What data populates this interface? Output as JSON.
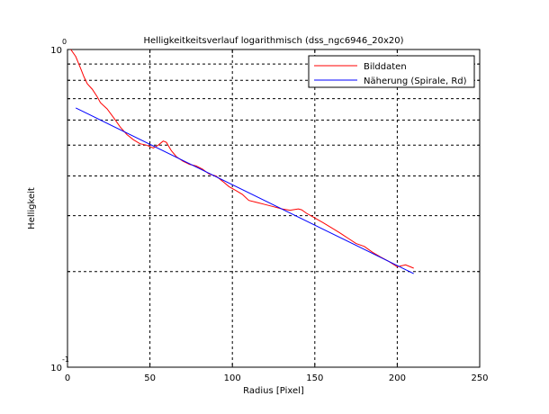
{
  "chart_data": {
    "type": "line",
    "title": "Helligkeitkeitsverlauf logarithmisch (dss_ngc6946_20x20)",
    "xlabel": "Radius [Pixel]",
    "ylabel": "Helligkeit",
    "xlim": [
      0,
      250
    ],
    "ylim": [
      0.1,
      1
    ],
    "yscale": "log",
    "x_ticks": [
      "0",
      "50",
      "100",
      "150",
      "200",
      "250"
    ],
    "y_ticks": [
      {
        "base": "10",
        "exp": "0",
        "value": 1
      },
      {
        "base": "10",
        "exp": "-1",
        "value": 0.1
      }
    ],
    "grid": true,
    "legend_position": "top-right",
    "series": [
      {
        "name": "Bilddaten",
        "color": "#ff0000",
        "x": [
          2,
          5,
          8,
          10,
          12,
          15,
          18,
          20,
          24,
          28,
          32,
          36,
          40,
          44,
          48,
          52,
          55,
          58,
          60,
          63,
          66,
          70,
          74,
          78,
          82,
          86,
          90,
          94,
          98,
          102,
          106,
          110,
          115,
          120,
          125,
          130,
          135,
          140,
          142,
          145,
          150,
          155,
          160,
          165,
          170,
          175,
          180,
          185,
          190,
          195,
          200,
          205,
          208,
          210
        ],
        "y": [
          1.0,
          0.95,
          0.87,
          0.82,
          0.78,
          0.75,
          0.71,
          0.68,
          0.65,
          0.61,
          0.57,
          0.54,
          0.52,
          0.505,
          0.5,
          0.49,
          0.5,
          0.515,
          0.51,
          0.48,
          0.46,
          0.445,
          0.435,
          0.43,
          0.42,
          0.405,
          0.4,
          0.385,
          0.37,
          0.36,
          0.35,
          0.335,
          0.33,
          0.325,
          0.32,
          0.315,
          0.312,
          0.315,
          0.313,
          0.305,
          0.295,
          0.285,
          0.275,
          0.265,
          0.255,
          0.245,
          0.24,
          0.23,
          0.222,
          0.215,
          0.207,
          0.21,
          0.207,
          0.205
        ]
      },
      {
        "name": "Näherung (Spirale, Rd)",
        "color": "#0000ff",
        "x": [
          5,
          210
        ],
        "y": [
          0.655,
          0.197
        ]
      }
    ]
  }
}
